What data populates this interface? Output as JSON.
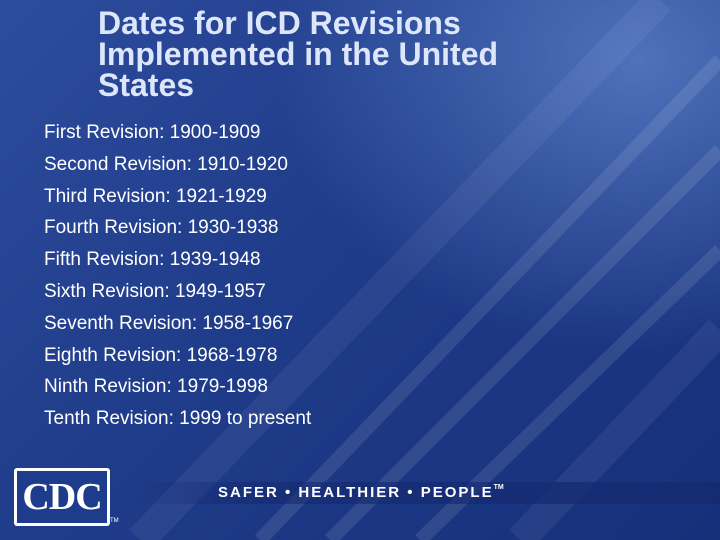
{
  "slide": {
    "title_lines": [
      "Dates for ICD Revisions",
      "Implemented in the United",
      "States"
    ],
    "items": [
      "First Revision:  1900-1909",
      "Second Revision:  1910-1920",
      "Third Revision:  1921-1929",
      "Fourth Revision:  1930-1938",
      "Fifth Revision:  1939-1948",
      "Sixth Revision:  1949-1957",
      "Seventh Revision:  1958-1967",
      "Eighth Revision:  1968-1978",
      "Ninth Revision:  1979-1998",
      "Tenth Revision:  1999 to present"
    ]
  },
  "footer": {
    "logo_text": "CDC",
    "logo_tm": "TM",
    "tagline": "SAFER • HEALTHIER • PEOPLE",
    "tagline_tm": "TM"
  },
  "colors": {
    "background": "#1f3c8a",
    "title": "#dde6fb",
    "text": "#ffffff"
  }
}
